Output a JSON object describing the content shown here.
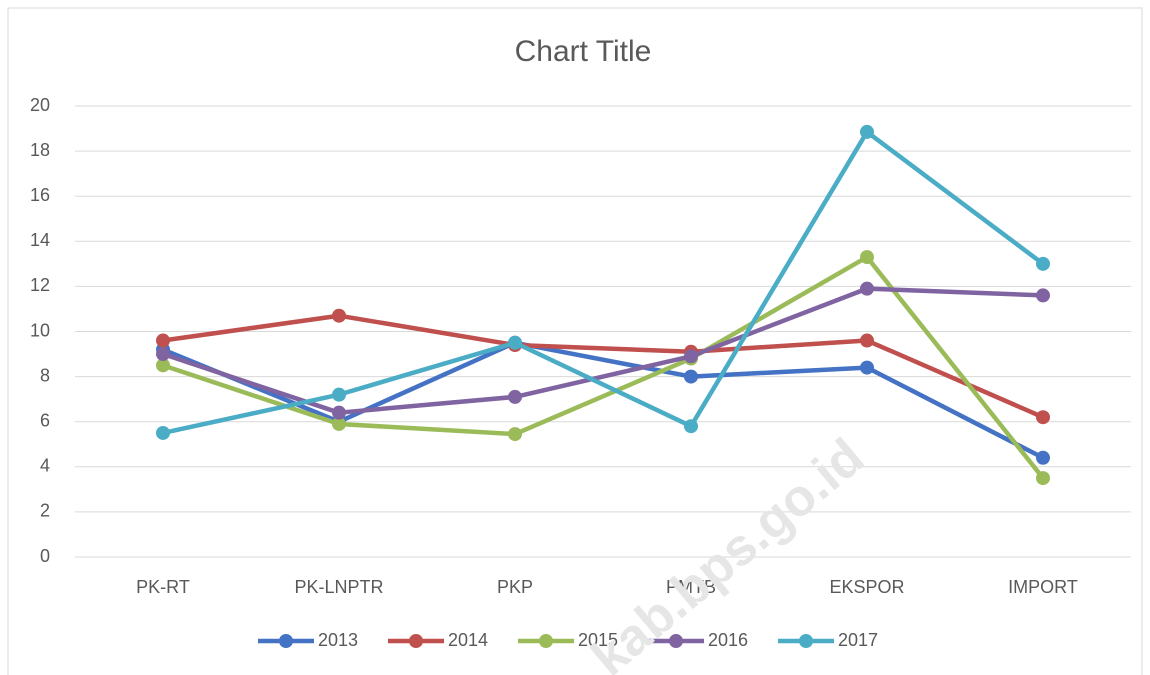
{
  "chart_data": {
    "type": "line",
    "title": "Chart Title",
    "categories": [
      "PK-RT",
      "PK-LNPTR",
      "PKP",
      "PMTB",
      "EKSPOR",
      "IMPORT"
    ],
    "series": [
      {
        "name": "2013",
        "color": "#4472c4",
        "values": [
          9.2,
          6.0,
          9.5,
          8.0,
          8.4,
          4.4
        ]
      },
      {
        "name": "2014",
        "color": "#c0504d",
        "values": [
          9.6,
          10.7,
          9.4,
          9.1,
          9.6,
          6.2
        ]
      },
      {
        "name": "2015",
        "color": "#9bbb59",
        "values": [
          8.5,
          5.9,
          5.45,
          8.8,
          13.3,
          3.5
        ]
      },
      {
        "name": "2016",
        "color": "#8064a2",
        "values": [
          9.0,
          6.4,
          7.1,
          8.9,
          11.9,
          11.6
        ]
      },
      {
        "name": "2017",
        "color": "#4bacc6",
        "values": [
          5.5,
          7.2,
          9.5,
          5.8,
          18.85,
          13.0
        ]
      }
    ],
    "ylim": [
      0,
      20
    ],
    "yticks": [
      0,
      2,
      4,
      6,
      8,
      10,
      12,
      14,
      16,
      18,
      20
    ],
    "grid": true,
    "legend": "bottom",
    "watermark": "kab.bps.go.id"
  }
}
